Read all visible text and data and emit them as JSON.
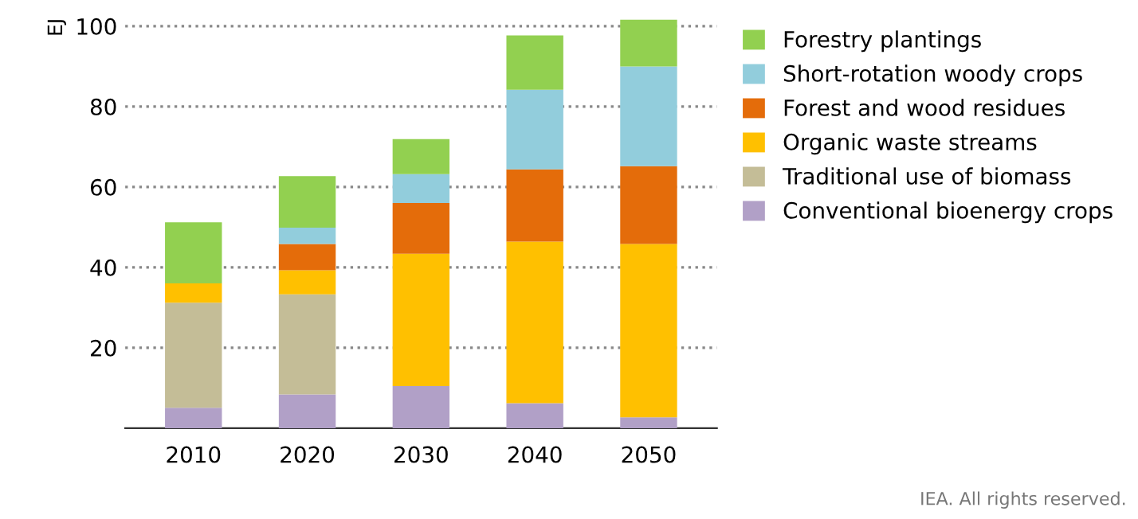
{
  "chart_data": {
    "type": "bar",
    "stacked": true,
    "ylabel": "EJ",
    "categories": [
      "2010",
      "2020",
      "2030",
      "2040",
      "2050"
    ],
    "series": [
      {
        "name": "Conventional bioenergy crops",
        "color": "#b1a0c7",
        "values": [
          5.1,
          8.4,
          10.5,
          6.2,
          2.7
        ]
      },
      {
        "name": "Traditional use of biomass",
        "color": "#c4bd97",
        "values": [
          26.1,
          24.9,
          0,
          0,
          0
        ]
      },
      {
        "name": "Organic waste streams",
        "color": "#ffc000",
        "values": [
          4.8,
          6.0,
          32.9,
          40.2,
          43.1
        ]
      },
      {
        "name": "Forest and wood residues",
        "color": "#e46c0a",
        "values": [
          0,
          6.5,
          12.6,
          18.0,
          19.4
        ]
      },
      {
        "name": "Short-rotation woody crops",
        "color": "#92cddc",
        "values": [
          0,
          4.1,
          7.2,
          19.8,
          24.8
        ]
      },
      {
        "name": "Forestry plantings",
        "color": "#92d050",
        "values": [
          15.2,
          12.8,
          8.7,
          13.5,
          11.6
        ]
      }
    ],
    "ylim": [
      0,
      102
    ],
    "yticks": [
      20,
      40,
      60,
      80,
      100
    ],
    "grid": "y",
    "legend": "right",
    "annotations": [
      "IEA. All rights reserved."
    ]
  }
}
